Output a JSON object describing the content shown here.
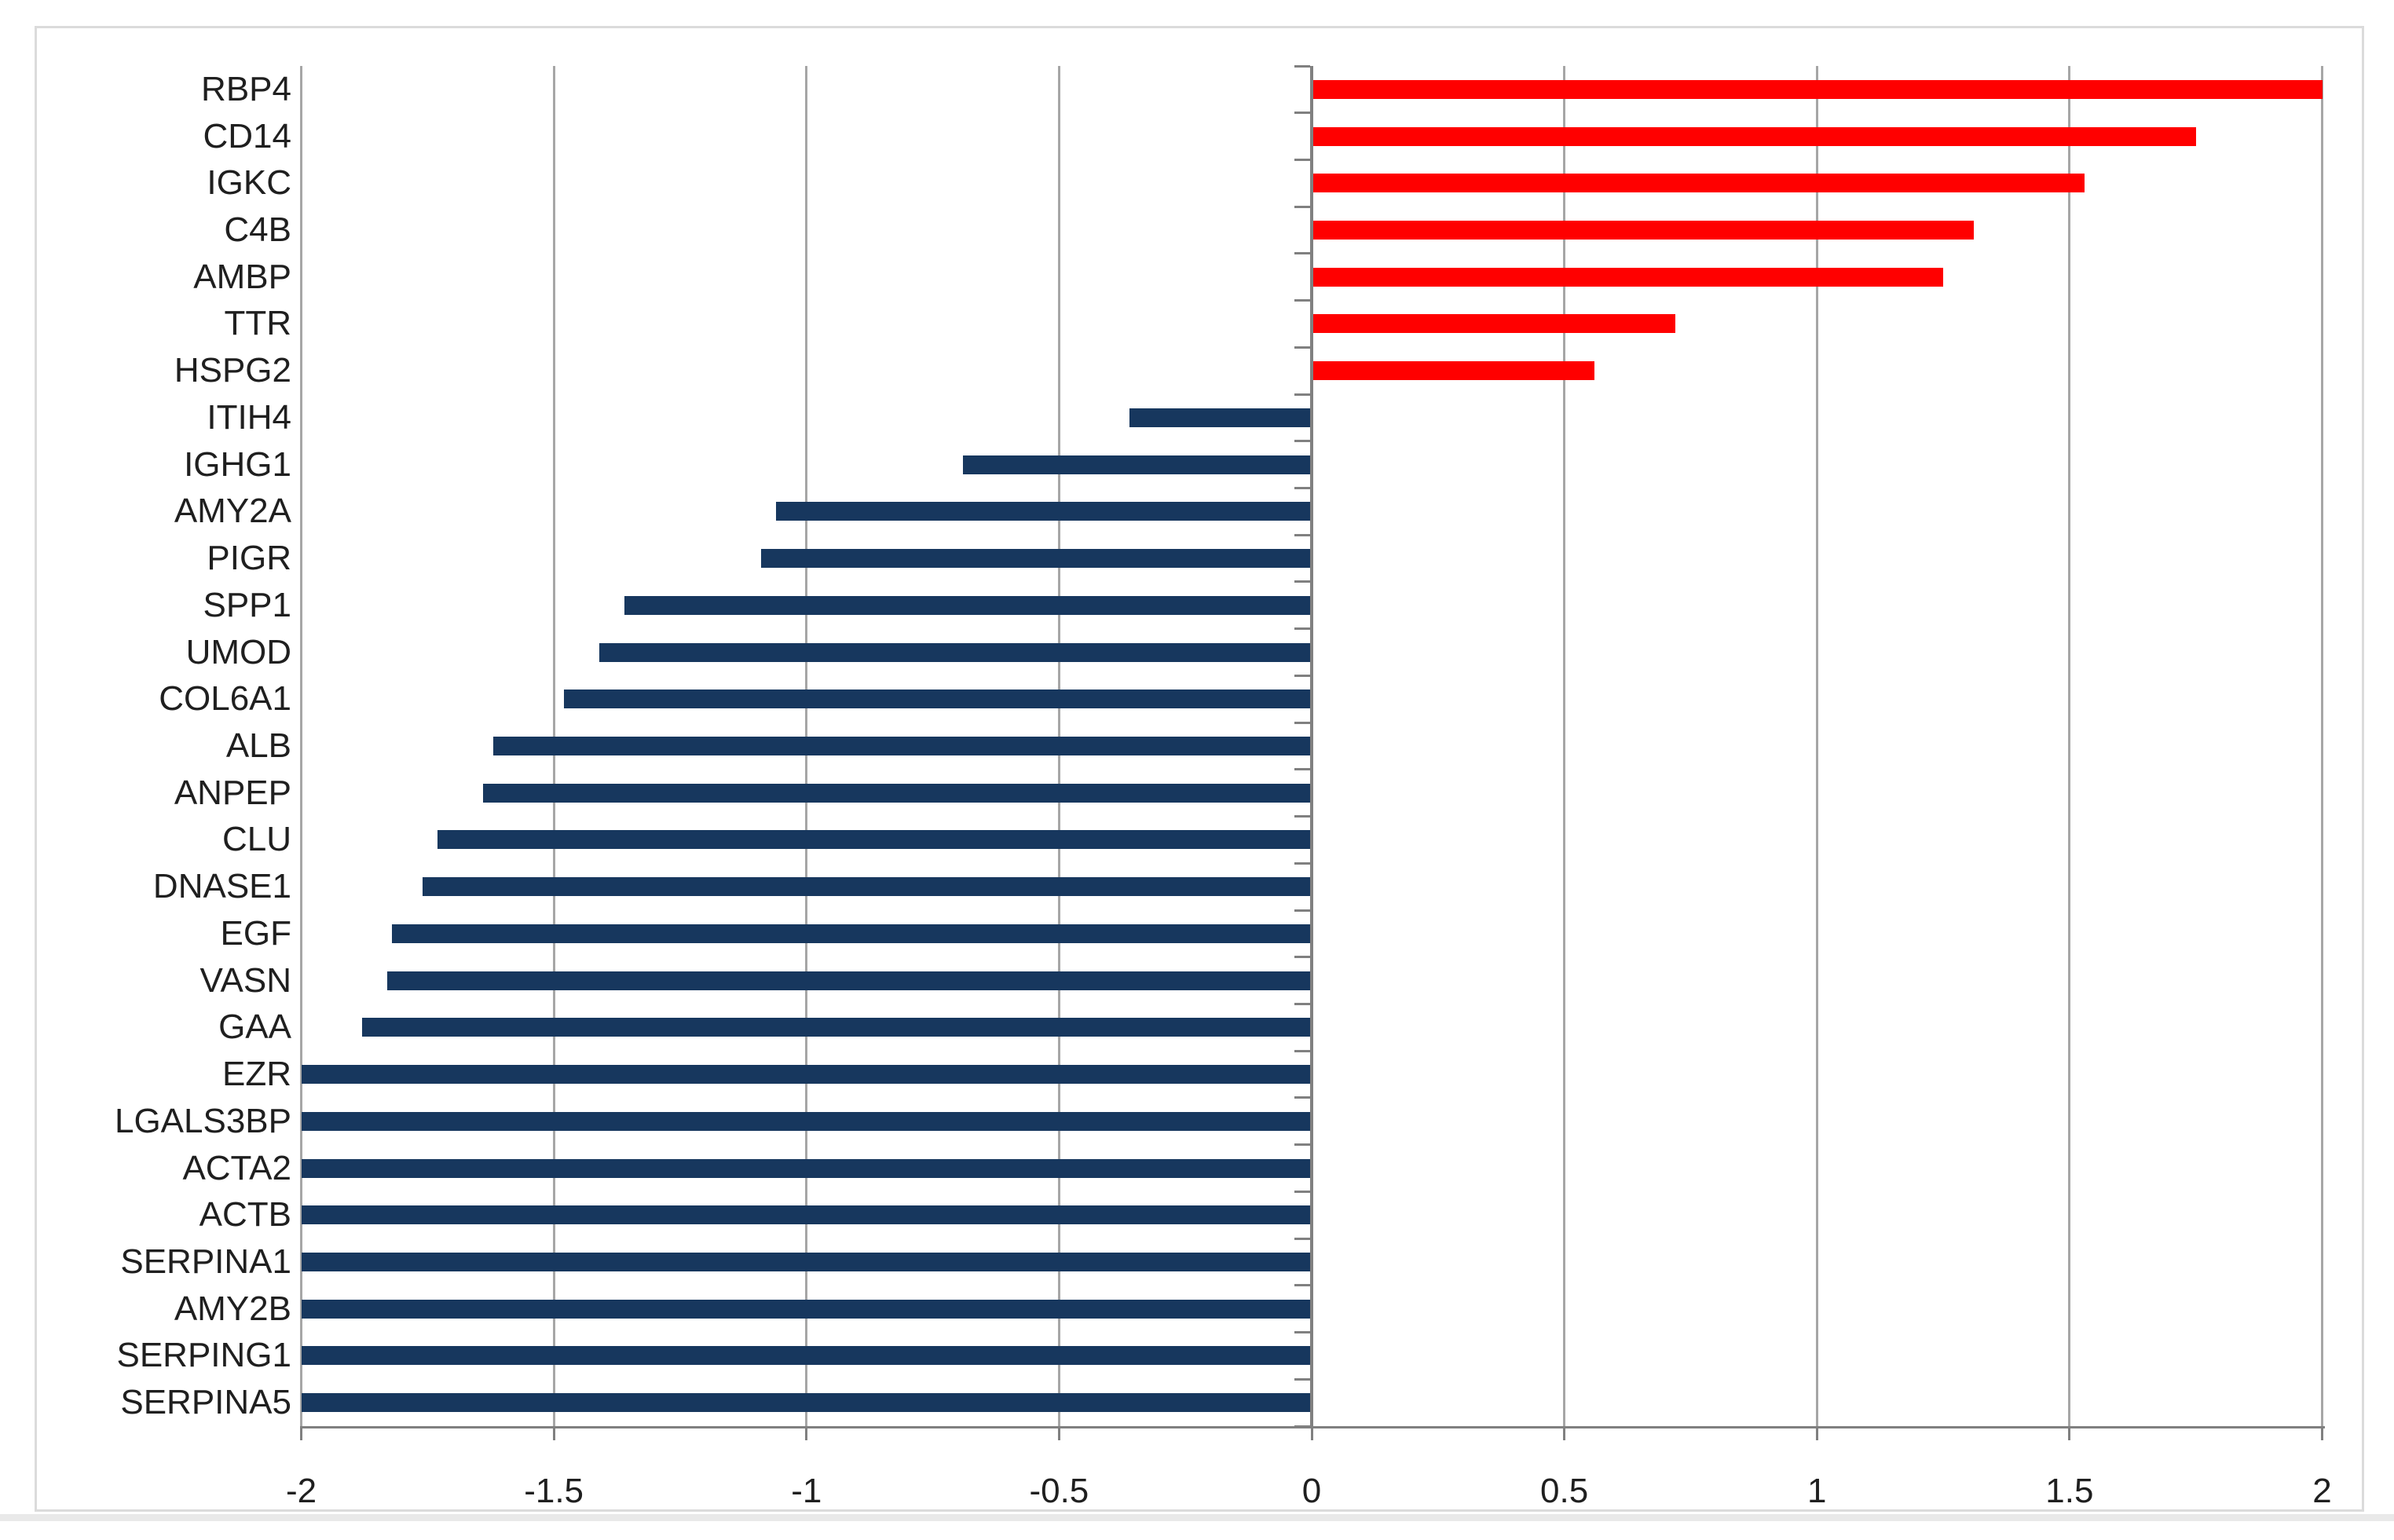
{
  "chart_data": {
    "type": "bar",
    "orientation": "horizontal",
    "title": "",
    "xlabel": "",
    "ylabel": "",
    "categories": [
      "RBP4",
      "CD14",
      "IGKC",
      "C4B",
      "AMBP",
      "TTR",
      "HSPG2",
      "ITIH4",
      "IGHG1",
      "AMY2A",
      "PIGR",
      "SPP1",
      "UMOD",
      "COL6A1",
      "ALB",
      "ANPEP",
      "CLU",
      "DNASE1",
      "EGF",
      "VASN",
      "GAA",
      "EZR",
      "LGALS3BP",
      "ACTA2",
      "ACTB",
      "SERPINA1",
      "AMY2B",
      "SERPING1",
      "SERPINA5"
    ],
    "values": [
      2.0,
      1.75,
      1.53,
      1.31,
      1.25,
      0.72,
      0.56,
      -0.36,
      -0.69,
      -1.06,
      -1.09,
      -1.36,
      -1.41,
      -1.48,
      -1.62,
      -1.64,
      -1.73,
      -1.76,
      -1.82,
      -1.83,
      -1.88,
      -2.0,
      -2.0,
      -2.0,
      -2.0,
      -2.0,
      -2.0,
      -2.0,
      -2.0
    ],
    "xlim": [
      -2,
      2
    ],
    "x_ticks": [
      {
        "value": -2,
        "label": "-2"
      },
      {
        "value": -1.5,
        "label": "-1.5"
      },
      {
        "value": -1,
        "label": "-1"
      },
      {
        "value": -0.5,
        "label": "-0.5"
      },
      {
        "value": 0,
        "label": "0"
      },
      {
        "value": 0.5,
        "label": "0.5"
      },
      {
        "value": 1,
        "label": "1"
      },
      {
        "value": 1.5,
        "label": "1.5"
      },
      {
        "value": 2,
        "label": "2"
      }
    ],
    "grid": "vertical-on",
    "legend": "none",
    "colors": {
      "positive_bar": "#FF0000",
      "negative_bar": "#17375E",
      "gridline": "#A6A6A6",
      "axis": "#808080",
      "frame_border": "#DBDBDB",
      "label_text": "#1F1F1F"
    }
  }
}
